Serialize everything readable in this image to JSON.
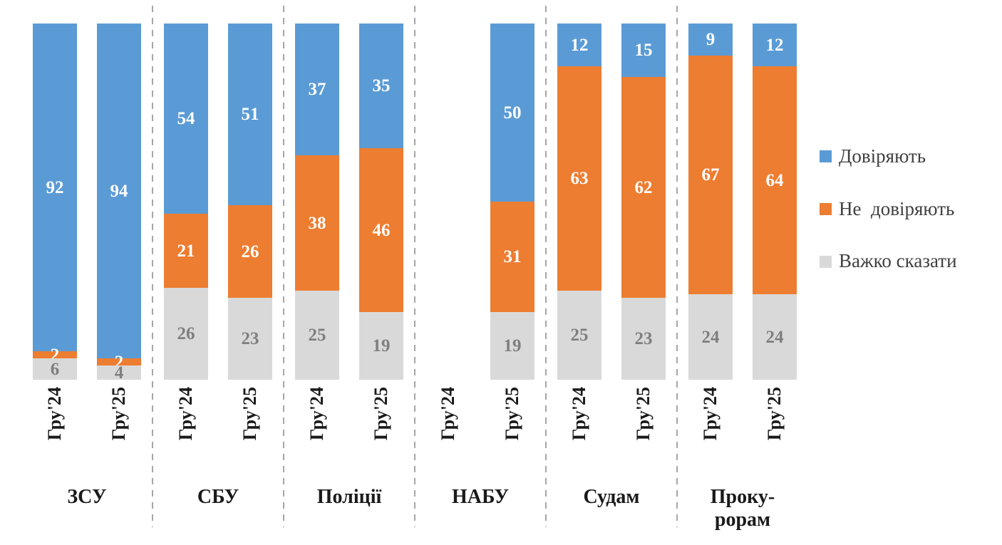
{
  "chart_data": {
    "type": "bar",
    "subtype": "100-percent-stacked-column",
    "title": "",
    "xlabel": "",
    "ylabel": "",
    "ylim": [
      0,
      100
    ],
    "grid": false,
    "legend_position": "right",
    "x_tick_rotation": 90,
    "series": [
      {
        "name": "Довіряють",
        "color": "#5B9BD5",
        "label_color": "#FFFFFF"
      },
      {
        "name": "Не  довіряють",
        "color": "#ED7D31",
        "label_color": "#FFFFFF"
      },
      {
        "name": "Важко сказати",
        "color": "#D9D9D9",
        "label_color": "#7F7F7F"
      }
    ],
    "groups": [
      {
        "label": "ЗСУ",
        "bars": [
          {
            "x": "Гру'24",
            "values": [
              92,
              2,
              6
            ]
          },
          {
            "x": "Гру'25",
            "values": [
              94,
              2,
              4
            ]
          }
        ]
      },
      {
        "label": "СБУ",
        "bars": [
          {
            "x": "Гру'24",
            "values": [
              54,
              21,
              26
            ]
          },
          {
            "x": "Гру'25",
            "values": [
              51,
              26,
              23
            ]
          }
        ]
      },
      {
        "label": "Поліції",
        "bars": [
          {
            "x": "Гру'24",
            "values": [
              37,
              38,
              25
            ]
          },
          {
            "x": "Гру'25",
            "values": [
              35,
              46,
              19
            ]
          }
        ]
      },
      {
        "label": "НАБУ",
        "bars": [
          {
            "x": "Гру'24",
            "values": null
          },
          {
            "x": "Гру'25",
            "values": [
              50,
              31,
              19
            ]
          }
        ]
      },
      {
        "label": "Судам",
        "bars": [
          {
            "x": "Гру'24",
            "values": [
              12,
              63,
              25
            ]
          },
          {
            "x": "Гру'25",
            "values": [
              15,
              62,
              23
            ]
          }
        ]
      },
      {
        "label": "Прокурорам",
        "label_lines": [
          "Проку-",
          "рорам"
        ],
        "bars": [
          {
            "x": "Гру'24",
            "values": [
              9,
              67,
              24
            ]
          },
          {
            "x": "Гру'25",
            "values": [
              12,
              64,
              24
            ]
          }
        ]
      }
    ]
  }
}
